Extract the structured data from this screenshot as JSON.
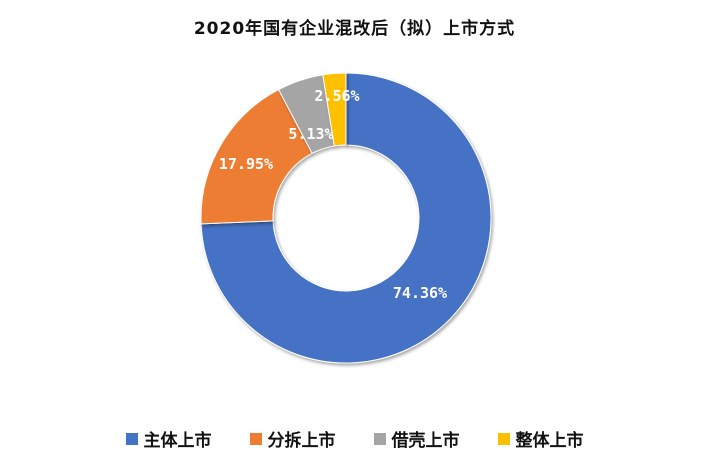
{
  "chart_data": {
    "type": "pie",
    "variant": "donut",
    "title": "2020年国有企业混改后（拟）上市方式",
    "categories": [
      "主体上市",
      "分拆上市",
      "借壳上市",
      "整体上市"
    ],
    "values": [
      74.36,
      17.95,
      5.13,
      2.56
    ],
    "value_labels": [
      "74.36%",
      "17.95%",
      "5.13%",
      "2.56%"
    ],
    "colors": [
      "#4472C4",
      "#ED7D31",
      "#A5A5A5",
      "#FFC000"
    ],
    "legend_position": "bottom"
  }
}
